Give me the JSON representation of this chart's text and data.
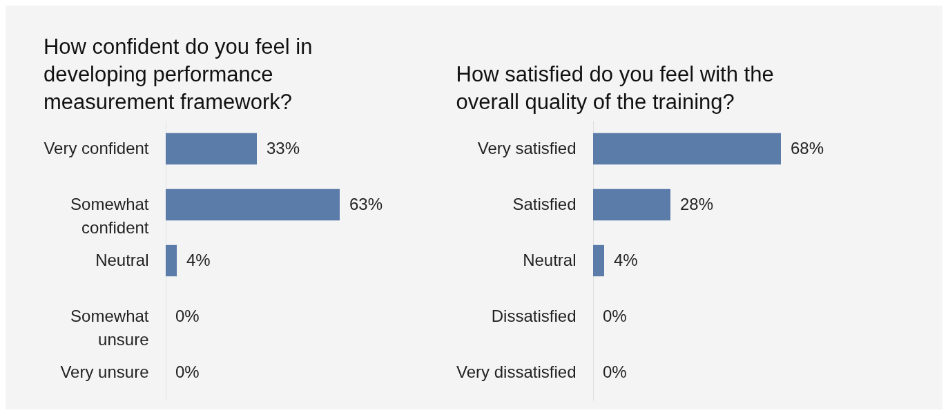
{
  "chart_data": [
    {
      "type": "bar",
      "orientation": "horizontal",
      "title": "How confident do you feel in developing performance measurement framework?",
      "categories": [
        "Very confident",
        "Somewhat confident",
        "Neutral",
        "Somewhat unsure",
        "Very unsure"
      ],
      "values": [
        33,
        63,
        4,
        0,
        0
      ],
      "value_labels": [
        "33%",
        "63%",
        "4%",
        "0%",
        "0%"
      ],
      "color": "#5b7ba9"
    },
    {
      "type": "bar",
      "orientation": "horizontal",
      "title": "How satisfied do you feel with the overall quality of the training?",
      "categories": [
        "Very satisfied",
        "Satisfied",
        "Neutral",
        "Dissatisfied",
        "Very dissatisfied"
      ],
      "values": [
        68,
        28,
        4,
        0,
        0
      ],
      "value_labels": [
        "68%",
        "28%",
        "4%",
        "0%",
        "0%"
      ],
      "color": "#5b7ba9"
    }
  ]
}
